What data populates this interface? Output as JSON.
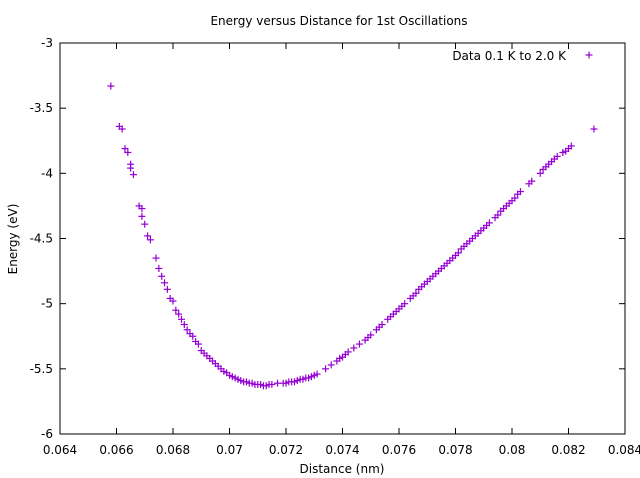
{
  "chart_data": {
    "type": "scatter",
    "title": "Energy versus Distance for 1st Oscillations",
    "xlabel": "Distance (nm)",
    "ylabel": "Energy (eV)",
    "xlim": [
      0.064,
      0.084
    ],
    "ylim": [
      -6,
      -3
    ],
    "xticks": [
      0.064,
      0.066,
      0.068,
      0.07,
      0.072,
      0.074,
      0.076,
      0.078,
      0.08,
      0.082,
      0.084
    ],
    "xtick_labels": [
      "0.064",
      "0.066",
      "0.068",
      "0.07",
      "0.072",
      "0.074",
      "0.076",
      "0.078",
      "0.08",
      "0.082",
      "0.084"
    ],
    "yticks": [
      -6,
      -5.5,
      -5,
      -4.5,
      -4,
      -3.5,
      -3
    ],
    "ytick_labels": [
      "-6",
      "-5.5",
      "-5",
      "-4.5",
      "-4",
      "-3.5",
      "-3"
    ],
    "grid": false,
    "legend_position": "top-right",
    "marker": "plus",
    "color": "#9400d3",
    "series": [
      {
        "name": "Data 0.1 K to 2.0 K",
        "x": [
          0.0658,
          0.0661,
          0.0662,
          0.0663,
          0.0664,
          0.0665,
          0.0665,
          0.0666,
          0.0668,
          0.0669,
          0.0669,
          0.067,
          0.0671,
          0.0672,
          0.0674,
          0.0675,
          0.0676,
          0.0677,
          0.0678,
          0.0679,
          0.068,
          0.0681,
          0.0682,
          0.0683,
          0.0684,
          0.0685,
          0.0686,
          0.0687,
          0.0688,
          0.0689,
          0.069,
          0.0691,
          0.0692,
          0.0693,
          0.0694,
          0.0695,
          0.0696,
          0.0697,
          0.0698,
          0.0699,
          0.07,
          0.0701,
          0.0702,
          0.0703,
          0.0704,
          0.0705,
          0.0706,
          0.0707,
          0.0708,
          0.0709,
          0.071,
          0.0711,
          0.0712,
          0.0713,
          0.0714,
          0.0715,
          0.0717,
          0.0719,
          0.072,
          0.0721,
          0.0722,
          0.0723,
          0.0724,
          0.0725,
          0.0726,
          0.0727,
          0.0728,
          0.0729,
          0.073,
          0.0731,
          0.0734,
          0.0736,
          0.0738,
          0.0739,
          0.074,
          0.0741,
          0.0742,
          0.0744,
          0.0746,
          0.0748,
          0.0749,
          0.075,
          0.0752,
          0.0753,
          0.0754,
          0.0756,
          0.0757,
          0.0758,
          0.0759,
          0.076,
          0.0761,
          0.0762,
          0.0764,
          0.0765,
          0.0766,
          0.0767,
          0.0768,
          0.0769,
          0.077,
          0.0771,
          0.0772,
          0.0773,
          0.0774,
          0.0775,
          0.0776,
          0.0777,
          0.0778,
          0.0779,
          0.078,
          0.0781,
          0.0782,
          0.0783,
          0.0784,
          0.0785,
          0.0786,
          0.0787,
          0.0788,
          0.0789,
          0.079,
          0.0791,
          0.0792,
          0.0794,
          0.0795,
          0.0796,
          0.0797,
          0.0798,
          0.0799,
          0.08,
          0.0801,
          0.0802,
          0.0803,
          0.0806,
          0.0807,
          0.081,
          0.0811,
          0.0812,
          0.0813,
          0.0814,
          0.0815,
          0.0816,
          0.0818,
          0.0819,
          0.082,
          0.0821,
          0.0829
        ],
        "y": [
          -3.33,
          -3.64,
          -3.66,
          -3.81,
          -3.84,
          -3.93,
          -3.96,
          -4.01,
          -4.25,
          -4.27,
          -4.33,
          -4.39,
          -4.48,
          -4.51,
          -4.65,
          -4.73,
          -4.79,
          -4.84,
          -4.89,
          -4.96,
          -4.98,
          -5.05,
          -5.08,
          -5.12,
          -5.16,
          -5.2,
          -5.23,
          -5.25,
          -5.29,
          -5.31,
          -5.36,
          -5.38,
          -5.4,
          -5.42,
          -5.44,
          -5.46,
          -5.48,
          -5.5,
          -5.52,
          -5.53,
          -5.55,
          -5.56,
          -5.57,
          -5.58,
          -5.59,
          -5.6,
          -5.6,
          -5.61,
          -5.61,
          -5.62,
          -5.62,
          -5.62,
          -5.63,
          -5.63,
          -5.62,
          -5.62,
          -5.61,
          -5.61,
          -5.61,
          -5.6,
          -5.6,
          -5.6,
          -5.59,
          -5.58,
          -5.58,
          -5.57,
          -5.57,
          -5.56,
          -5.55,
          -5.54,
          -5.5,
          -5.47,
          -5.44,
          -5.42,
          -5.41,
          -5.39,
          -5.37,
          -5.34,
          -5.31,
          -5.28,
          -5.26,
          -5.24,
          -5.2,
          -5.18,
          -5.16,
          -5.12,
          -5.1,
          -5.08,
          -5.06,
          -5.04,
          -5.02,
          -5,
          -4.96,
          -4.94,
          -4.92,
          -4.89,
          -4.87,
          -4.85,
          -4.83,
          -4.81,
          -4.79,
          -4.77,
          -4.75,
          -4.73,
          -4.71,
          -4.69,
          -4.67,
          -4.65,
          -4.63,
          -4.61,
          -4.58,
          -4.56,
          -4.54,
          -4.52,
          -4.5,
          -4.48,
          -4.46,
          -4.44,
          -4.42,
          -4.4,
          -4.38,
          -4.34,
          -4.32,
          -4.29,
          -4.27,
          -4.25,
          -4.23,
          -4.21,
          -4.19,
          -4.16,
          -4.14,
          -4.08,
          -4.06,
          -4,
          -3.97,
          -3.95,
          -3.93,
          -3.91,
          -3.89,
          -3.87,
          -3.84,
          -3.83,
          -3.81,
          -3.79,
          -3.66
        ]
      }
    ]
  }
}
